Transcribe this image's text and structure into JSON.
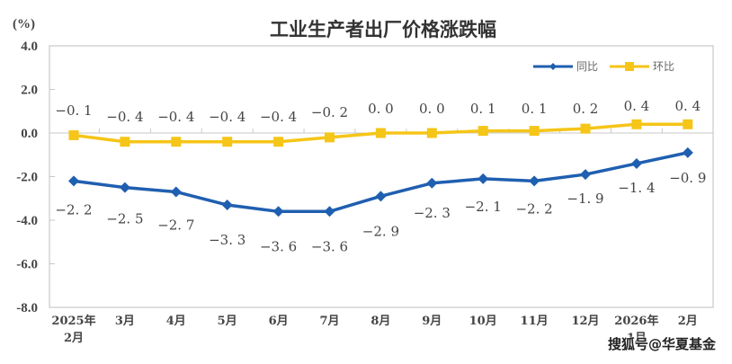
{
  "chart_data": {
    "type": "line",
    "title": "工业生产者出厂价格涨跌幅",
    "unit_label": "(%)",
    "xlabel": "",
    "ylabel": "(%)",
    "ylim": [
      -8.0,
      4.0
    ],
    "yticks": [
      "4.0",
      "2.0",
      "0.0",
      "-2.0",
      "-4.0",
      "-6.0",
      "-8.0"
    ],
    "categories": [
      "2025年2月",
      "3月",
      "4月",
      "5月",
      "6月",
      "7月",
      "8月",
      "9月",
      "10月",
      "11月",
      "12月",
      "2026年1月",
      "2月"
    ],
    "grid": false,
    "legend_position": "top-right",
    "series": [
      {
        "name": "同比",
        "color": "#1f5fb0",
        "marker": "diamond",
        "values": [
          -2.2,
          -2.5,
          -2.7,
          -3.3,
          -3.6,
          -3.6,
          -2.9,
          -2.3,
          -2.1,
          -2.2,
          -1.9,
          -1.4,
          -0.9
        ],
        "labels": [
          "-2.2",
          "-2.5",
          "-2.7",
          "-3.3",
          "-3.6",
          "-3.6",
          "-2.9",
          "-2.3",
          "-2.1",
          "-2.2",
          "-1.9",
          "-1.4",
          "-0.9"
        ]
      },
      {
        "name": "环比",
        "color": "#f5c518",
        "marker": "square",
        "values": [
          -0.1,
          -0.4,
          -0.4,
          -0.4,
          -0.4,
          -0.2,
          0.0,
          0.0,
          0.1,
          0.1,
          0.2,
          0.4,
          0.4
        ],
        "labels": [
          "-0.1",
          "-0.4",
          "-0.4",
          "-0.4",
          "-0.4",
          "-0.2",
          "0.0",
          "0.0",
          "0.1",
          "0.1",
          "0.2",
          "0.4",
          "0.4"
        ]
      }
    ]
  },
  "watermark": "搜狐号@华夏基金"
}
